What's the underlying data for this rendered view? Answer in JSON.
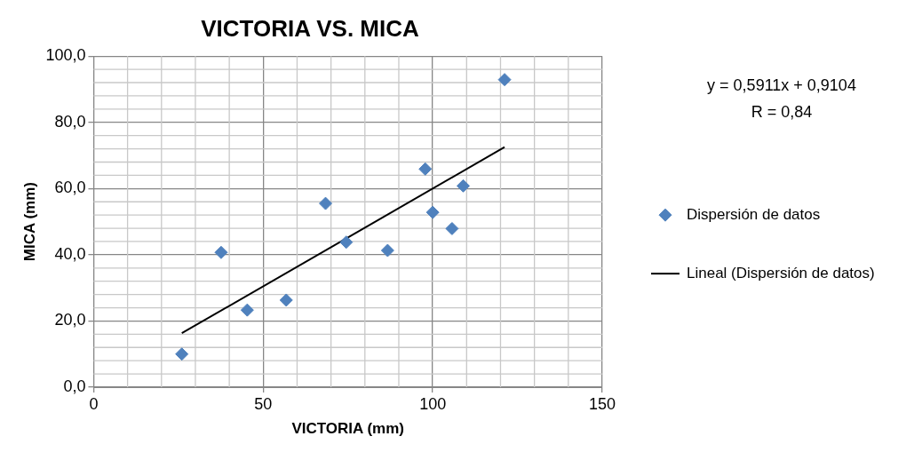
{
  "chart_data": {
    "type": "scatter",
    "title": "VICTORIA VS. MICA",
    "xlabel": "VICTORIA (mm)",
    "ylabel": "MICA (mm)",
    "series": [
      {
        "name": "Dispersión de datos",
        "color": "#4f81bd",
        "marker": "diamond",
        "x": [
          26.0,
          37.6,
          45.3,
          56.8,
          68.4,
          74.5,
          86.7,
          97.8,
          100.0,
          105.7,
          109.0,
          121.2
        ],
        "values": [
          10.0,
          40.7,
          23.3,
          26.3,
          55.5,
          43.8,
          41.3,
          65.9,
          52.8,
          47.9,
          60.8,
          92.9
        ]
      },
      {
        "name": "Lineal (Dispersión de datos)",
        "type": "line",
        "color": "#000000",
        "marker": "none",
        "x": [
          26.0,
          121.2
        ],
        "values": [
          16.3,
          72.5
        ]
      }
    ],
    "xlim": [
      0,
      150
    ],
    "xticks": [
      0,
      50,
      100,
      150
    ],
    "ylim": [
      0,
      100
    ],
    "yticks": [
      {
        "value": 0,
        "label": "0,0"
      },
      {
        "value": 20,
        "label": "20,0"
      },
      {
        "value": 40,
        "label": "40,0"
      },
      {
        "value": 60,
        "label": "60,0"
      },
      {
        "value": 80,
        "label": "80,0"
      },
      {
        "value": 100,
        "label": "100,0"
      }
    ],
    "grid": true,
    "legend": "right",
    "annotations": [
      "y = 0,5911x + 0,9104",
      "R = 0,84"
    ]
  }
}
